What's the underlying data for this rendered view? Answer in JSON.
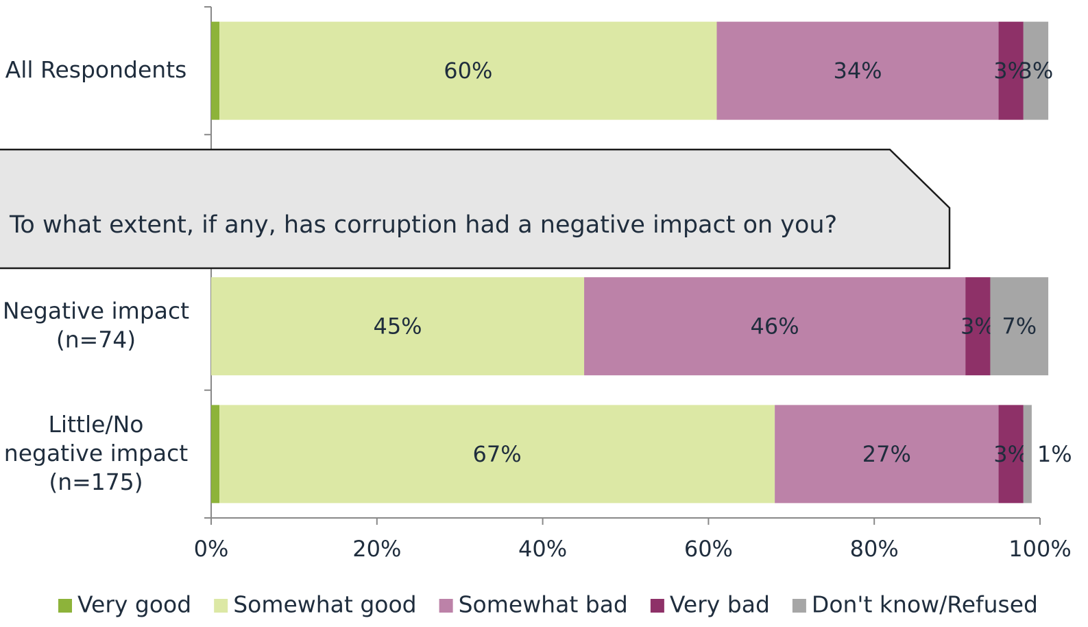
{
  "chart_data": {
    "type": "stacked-bar-horizontal",
    "annotation": "To what extent, if any, has corruption had a negative impact on you?",
    "categories": [
      "All Respondents",
      null,
      "Negative impact\n(n=74)",
      "Little/No\nnegative impact\n(n=175)"
    ],
    "series": [
      {
        "name": "Very good",
        "color": "#8db33a",
        "values": [
          1,
          null,
          0,
          1
        ],
        "value_labels": [
          "1%",
          null,
          null,
          "1%"
        ],
        "label_color": "#1f2d3d"
      },
      {
        "name": "Somewhat good",
        "color": "#dce8a5",
        "values": [
          60,
          null,
          45,
          67
        ],
        "value_labels": [
          "60%",
          null,
          "45%",
          "67%"
        ],
        "label_color": "#1f2d3d"
      },
      {
        "name": "Somewhat bad",
        "color": "#bc82a8",
        "values": [
          34,
          null,
          46,
          27
        ],
        "value_labels": [
          "34%",
          null,
          "46%",
          "27%"
        ],
        "label_color": "#ffffff"
      },
      {
        "name": "Very bad",
        "color": "#8e3168",
        "values": [
          3,
          null,
          3,
          3
        ],
        "value_labels": [
          "3%",
          null,
          "3%",
          "3%"
        ],
        "label_color": "#ffffff"
      },
      {
        "name": "Don't know/Refused",
        "color": "#a6a6a6",
        "values": [
          3,
          null,
          7,
          1
        ],
        "value_labels": [
          "3%",
          null,
          "7%",
          "1%"
        ],
        "label_color": "#1f2d3d"
      }
    ],
    "xlim": [
      0,
      100
    ],
    "xticks": [
      {
        "value": 0,
        "label": "0%"
      },
      {
        "value": 20,
        "label": "20%"
      },
      {
        "value": 40,
        "label": "40%"
      },
      {
        "value": 60,
        "label": "60%"
      },
      {
        "value": 80,
        "label": "80%"
      },
      {
        "value": 100,
        "label": "100%"
      }
    ],
    "legend": "bottom"
  }
}
